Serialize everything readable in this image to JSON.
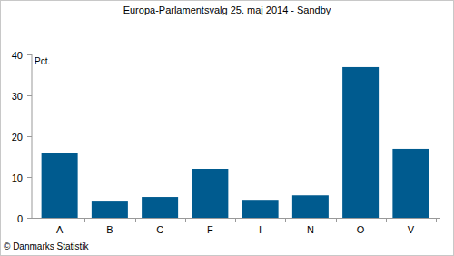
{
  "chart_data": {
    "type": "bar",
    "title": "Europa-Parlamentsvalg 25. maj 2014 - Sandby",
    "ylabel": "Pct.",
    "source": "© Danmarks Statistik",
    "categories": [
      "A",
      "B",
      "C",
      "F",
      "I",
      "N",
      "O",
      "V"
    ],
    "values": [
      16,
      4.2,
      5.1,
      12,
      4.4,
      5.5,
      36.9,
      16.9
    ],
    "color": "#005b8f",
    "ylim": [
      0,
      40
    ],
    "yticks": [
      0,
      10,
      20,
      30,
      40
    ],
    "grid": false
  }
}
